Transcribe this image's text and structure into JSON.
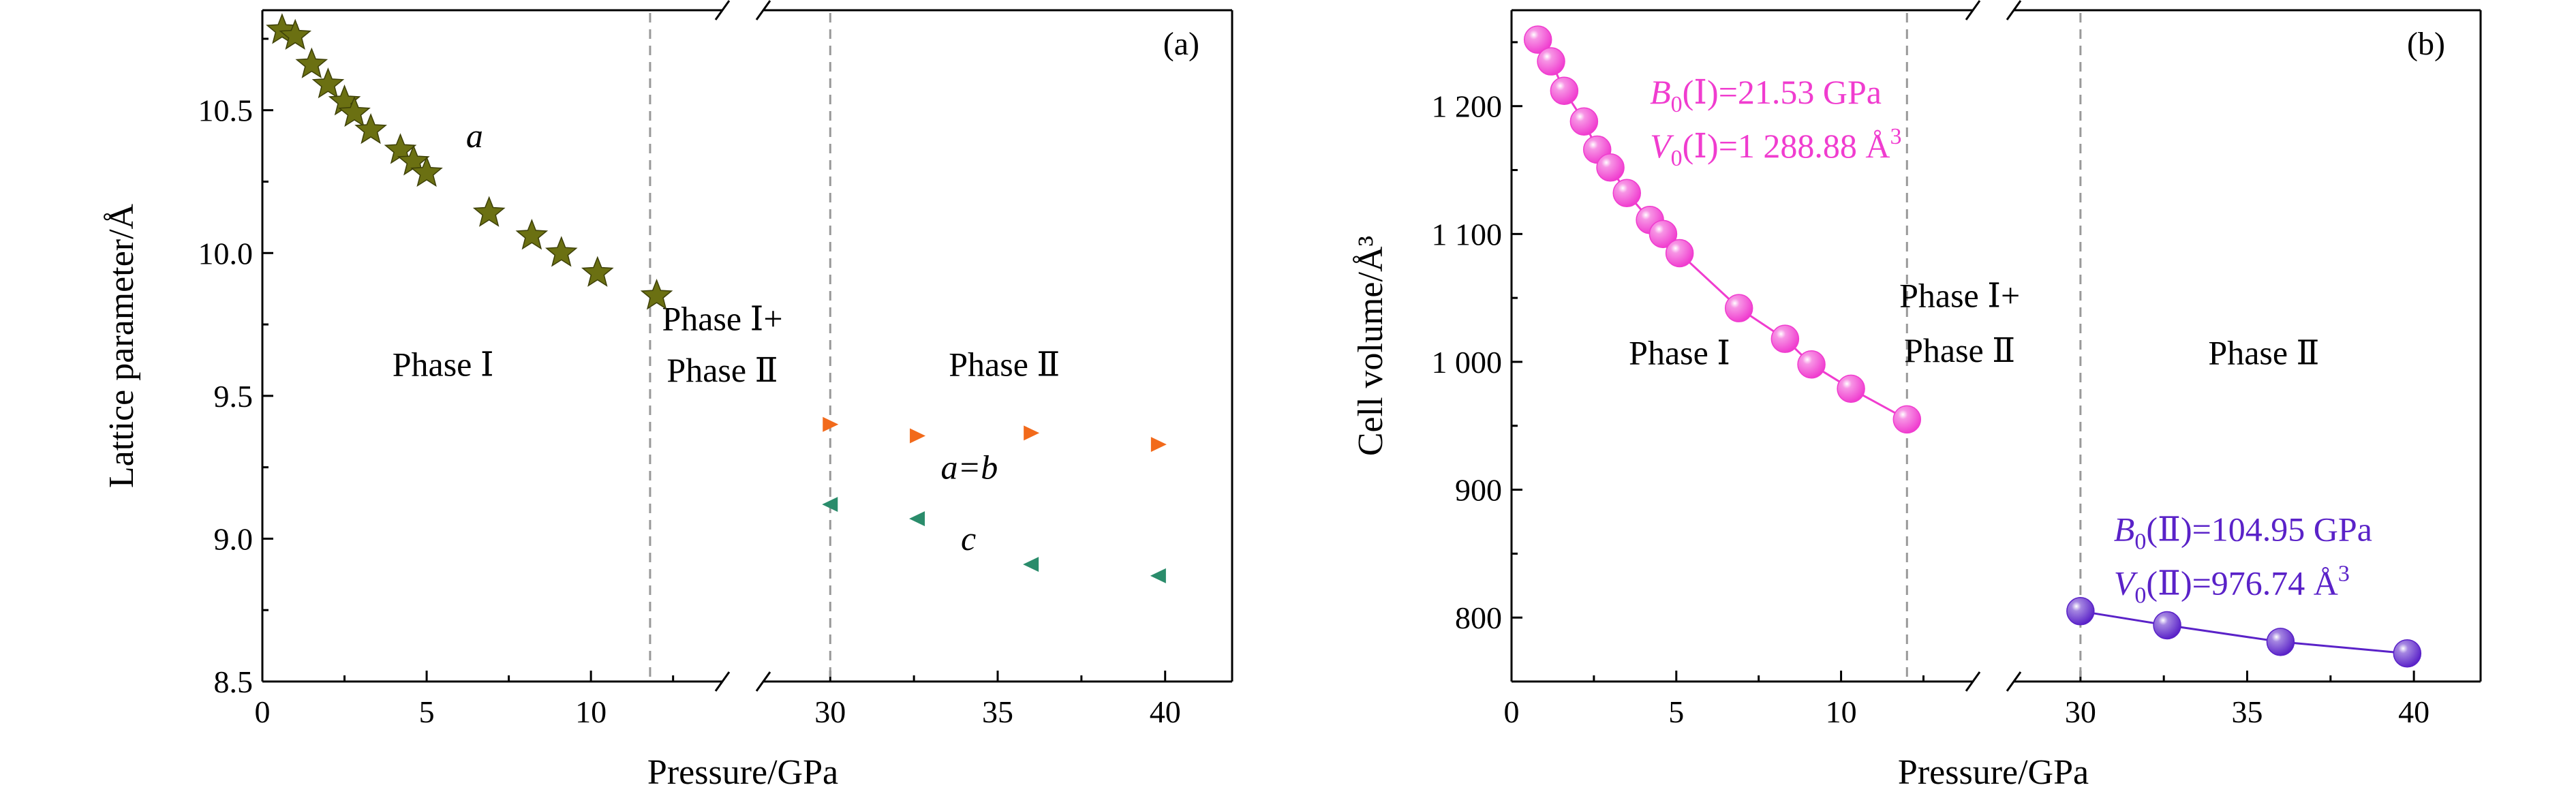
{
  "chart_data": [
    {
      "panel": "a",
      "panel_label": "(a)",
      "type": "scatter",
      "xlabel": "Pressure/GPa",
      "ylabel": "Lattice parameter/Å",
      "x_axis_break": true,
      "xlim_low": [
        0,
        14
      ],
      "xlim_high": [
        28,
        42
      ],
      "xticks_low": [
        "0",
        "5",
        "10"
      ],
      "xticks_high": [
        "30",
        "35",
        "40"
      ],
      "ylim": [
        8.5,
        10.85
      ],
      "yticks": [
        "8.5",
        "9.0",
        "9.5",
        "10.0",
        "10.5"
      ],
      "boundary_lines": [
        11.8,
        30
      ],
      "phase_labels": [
        {
          "text": "Phase Ⅰ",
          "x": 5.5,
          "y": 9.57
        },
        {
          "text": "Phase Ⅰ+",
          "x": 14,
          "y": 9.73
        },
        {
          "text": "Phase Ⅱ",
          "x": 14,
          "y": 9.55
        },
        {
          "text": "Phase Ⅱ",
          "x": 35.2,
          "y": 9.57
        }
      ],
      "series": [
        {
          "name": "a",
          "marker": "star",
          "color": "#6b7012",
          "points": [
            [
              0.6,
              10.78
            ],
            [
              1.0,
              10.76
            ],
            [
              1.5,
              10.66
            ],
            [
              2.0,
              10.59
            ],
            [
              2.5,
              10.53
            ],
            [
              2.8,
              10.49
            ],
            [
              3.3,
              10.43
            ],
            [
              4.2,
              10.36
            ],
            [
              4.6,
              10.32
            ],
            [
              5.0,
              10.28
            ],
            [
              6.9,
              10.14
            ],
            [
              8.2,
              10.06
            ],
            [
              9.1,
              10.0
            ],
            [
              10.2,
              9.93
            ],
            [
              12.0,
              9.85
            ]
          ]
        },
        {
          "name": "a=b",
          "marker": "triangle-right",
          "color": "#f26a1b",
          "points": [
            [
              30.0,
              9.4
            ],
            [
              32.6,
              9.36
            ],
            [
              36.0,
              9.37
            ],
            [
              39.8,
              9.33
            ]
          ]
        },
        {
          "name": "c",
          "marker": "triangle-left",
          "color": "#2a8c6b",
          "points": [
            [
              30.0,
              9.12
            ],
            [
              32.6,
              9.07
            ],
            [
              36.0,
              8.91
            ],
            [
              39.8,
              8.87
            ]
          ]
        }
      ],
      "annotations": [
        {
          "text": "a",
          "italic": true,
          "x": 6.2,
          "y": 10.37
        },
        {
          "text": "a=b",
          "italic": true,
          "x": 33.3,
          "y": 9.21
        },
        {
          "text": "c",
          "italic": true,
          "x": 33.9,
          "y": 8.96
        }
      ]
    },
    {
      "panel": "b",
      "panel_label": "(b)",
      "type": "scatter",
      "xlabel": "Pressure/GPa",
      "ylabel": "Cell volume/Å³",
      "x_axis_break": true,
      "xlim_low": [
        0,
        14
      ],
      "xlim_high": [
        28,
        42
      ],
      "xticks_low": [
        "0",
        "5",
        "10"
      ],
      "xticks_high": [
        "30",
        "35",
        "40"
      ],
      "ylim": [
        750,
        1275
      ],
      "yticks": [
        "800",
        "900",
        "1 000",
        "1 100",
        "1 200"
      ],
      "boundary_lines": [
        12.0,
        30
      ],
      "phase_labels": [
        {
          "text": "Phase Ⅰ",
          "x": 5.1,
          "y": 998
        },
        {
          "text": "Phase Ⅰ+",
          "x": 13.6,
          "y": 1043
        },
        {
          "text": "Phase Ⅱ",
          "x": 13.6,
          "y": 1000
        },
        {
          "text": "Phase Ⅱ",
          "x": 35.5,
          "y": 998
        }
      ],
      "series": [
        {
          "name": "Phase Ⅰ",
          "marker": "sphere",
          "color": "#f03ccf",
          "points": [
            [
              0.8,
              1252
            ],
            [
              1.2,
              1235
            ],
            [
              1.6,
              1212
            ],
            [
              2.2,
              1188
            ],
            [
              2.6,
              1166
            ],
            [
              3.0,
              1152
            ],
            [
              3.5,
              1132
            ],
            [
              4.2,
              1111
            ],
            [
              4.6,
              1100
            ],
            [
              5.1,
              1085
            ],
            [
              6.9,
              1042
            ],
            [
              8.3,
              1018
            ],
            [
              9.1,
              998
            ],
            [
              10.3,
              979
            ],
            [
              12.0,
              955
            ]
          ]
        },
        {
          "name": "Phase Ⅱ",
          "marker": "sphere",
          "color": "#5a22c8",
          "points": [
            [
              30.0,
              805
            ],
            [
              32.6,
              794
            ],
            [
              36.0,
              781
            ],
            [
              39.8,
              772
            ]
          ]
        }
      ],
      "annotations": [
        {
          "text": "B0(Ⅰ)=21.53 GPa",
          "color": "#f03ccf",
          "x": 4.2,
          "y": 1202
        },
        {
          "text": "V0(Ⅰ)=1 288.88 Å3",
          "color": "#f03ccf",
          "x": 4.2,
          "y": 1160
        },
        {
          "text": "B0(Ⅱ)=104.95 GPa",
          "color": "#5a22c8",
          "x": 31.0,
          "y": 860
        },
        {
          "text": "V0(Ⅱ)=976.74 Å3",
          "color": "#5a22c8",
          "x": 31.0,
          "y": 818
        }
      ]
    }
  ]
}
